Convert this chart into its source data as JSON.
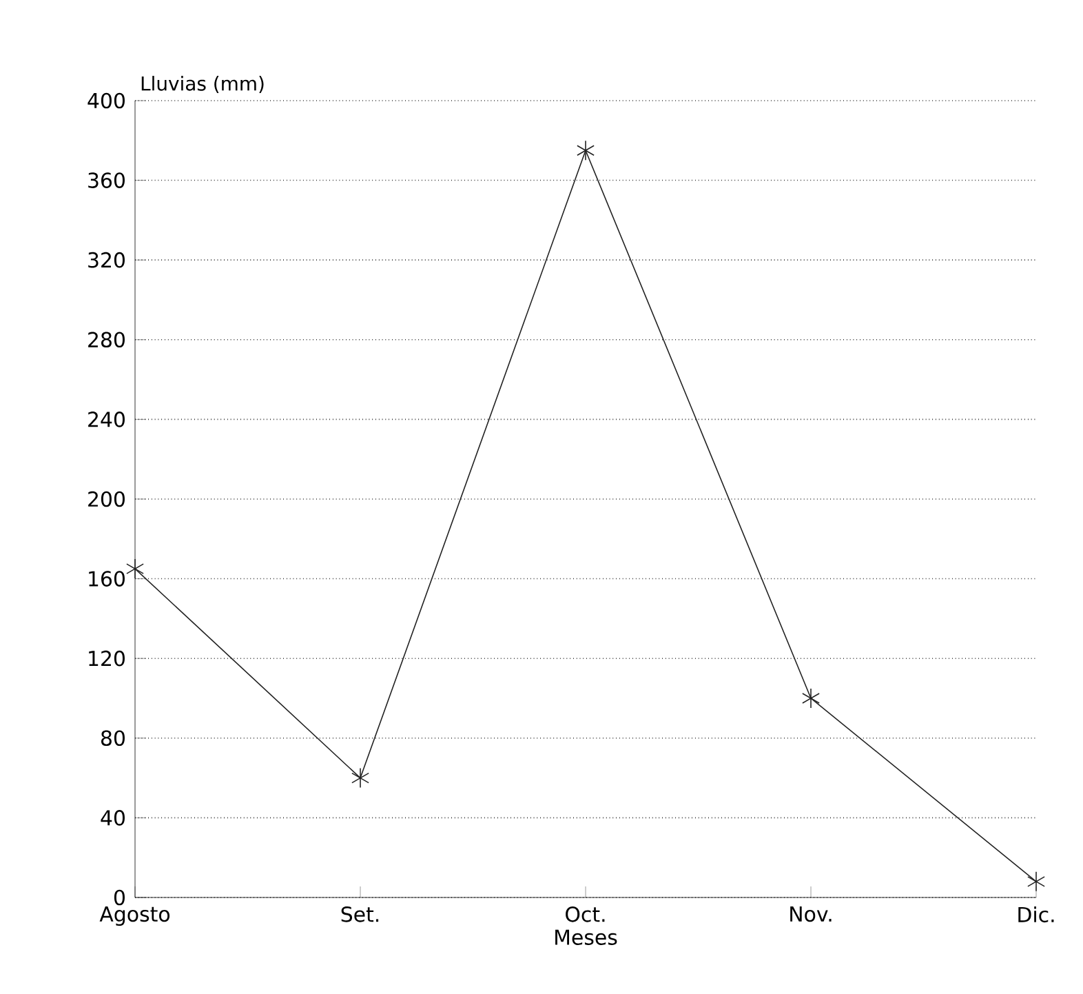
{
  "chart_data": {
    "type": "line",
    "xlabel": "Meses",
    "ylabel": "Lluvias (mm)",
    "categories": [
      "Agosto",
      "Set.",
      "Oct.",
      "Nov.",
      "Dic."
    ],
    "values": [
      165,
      60,
      375,
      100,
      8
    ],
    "color": "#222222",
    "marker": "cross",
    "line_style": "solid",
    "grid": "y",
    "ylim": [
      0,
      400
    ],
    "yticks": [
      0,
      40,
      80,
      120,
      160,
      200,
      240,
      280,
      320,
      360,
      400
    ]
  }
}
